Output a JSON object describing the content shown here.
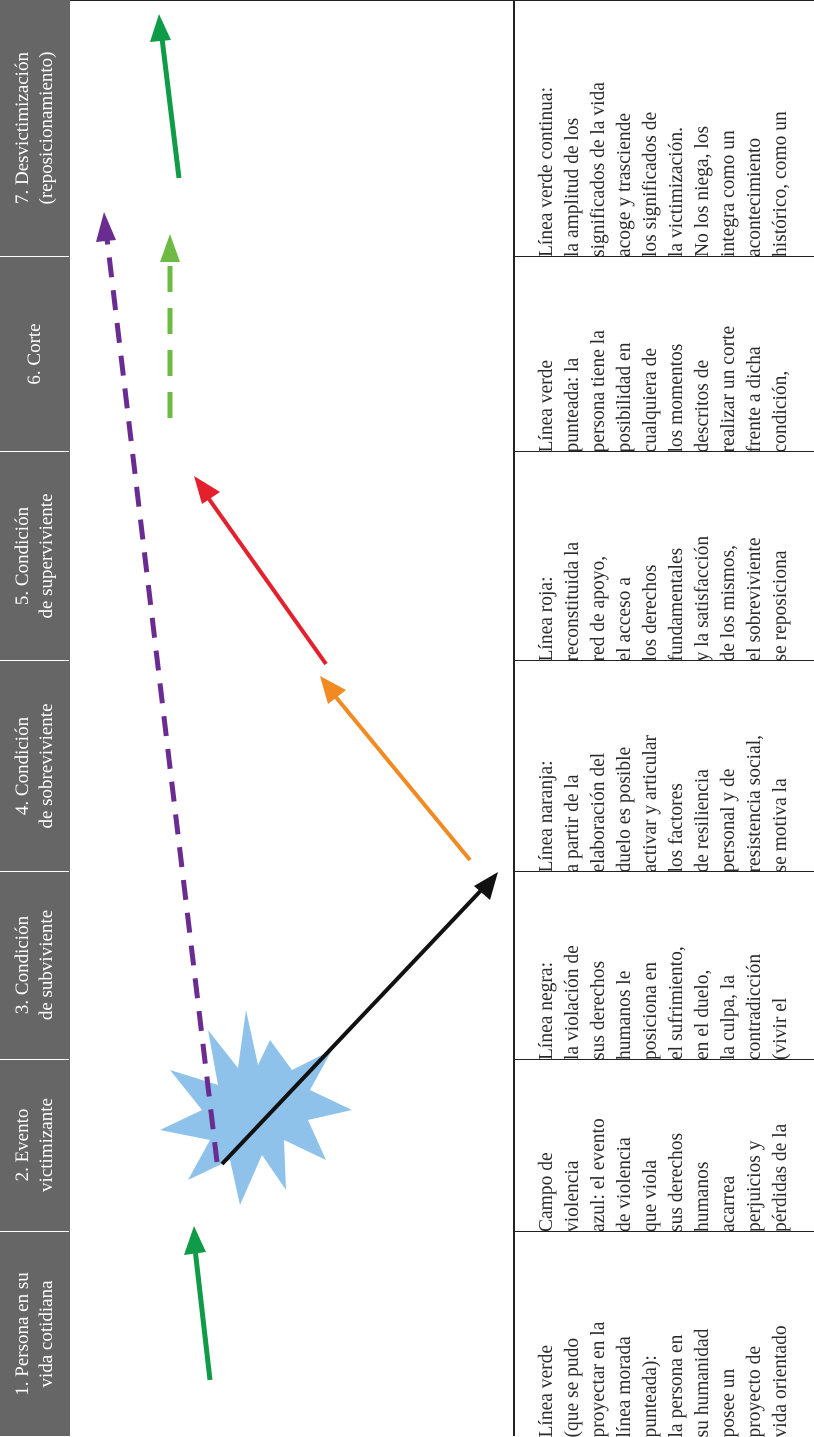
{
  "columns": [
    {
      "header_line1": "1. Persona en su",
      "header_line2": "vida cotidiana",
      "description": "Línea verde\n(que se pudo\nproyectar en la\nlínea morada\npunteada):\nla persona en\nsu humanidad\nposee un\nproyecto de\nvida orientado"
    },
    {
      "header_line1": "2. Evento",
      "header_line2": "victimizante",
      "description": "Campo de\nviolencia\nazul: el evento\nde violencia\nque viola\nsus derechos\nhumanos\nacarrea\nperjuicios y\npérdidas de la"
    },
    {
      "header_line1": "3. Condición",
      "header_line2": "de subviviente",
      "description": "Línea negra:\nla violación de\nsus derechos\nhumanos le\nposiciona en\nel sufrimiento,\nen el duelo,\nla culpa, la\ncontradicción\n(vivir el"
    },
    {
      "header_line1": "4. Condición",
      "header_line2": "de sobreviviente",
      "description": "Línea naranja:\na partir de la\nelaboración del\nduelo es posible\nactivar y articular\nlos factores\nde resiliencia\npersonal y de\nresistencia social,\nse motiva la"
    },
    {
      "header_line1": "5. Condición",
      "header_line2": "de superviviente",
      "description": "Línea roja:\nreconstituida la\nred de apoyo,\nel acceso a\nlos derechos\nfundamentales\ny la satisfacción\nde los mismos,\nel sobreviviente\nse reposiciona"
    },
    {
      "header_line1": "6. Corte",
      "header_line2": "",
      "description": "Línea verde\npunteada: la\npersona tiene la\nposibilidad en\ncualquiera de\nlos momentos\ndescritos de\nrealizar un corte\nfrente a dicha\ncondición,"
    },
    {
      "header_line1": "7. Desvictimización",
      "header_line2": "(reposicionamiento)",
      "description": "Línea verde continua:\nla amplitud de los\nsignificados de la vida\nacoge y trasciende\nlos significados de\nla victimización.\nNo los niega, los\nintegra como un\nacontecimiento\nhistórico, como un"
    }
  ],
  "colors": {
    "header_bg": "#666666",
    "green": "#0f9b48",
    "light_green": "#6dbb45",
    "purple": "#6a2c91",
    "black": "#111111",
    "orange": "#f28a24",
    "red": "#e3202b",
    "blue_burst": "#8fc2ea"
  }
}
